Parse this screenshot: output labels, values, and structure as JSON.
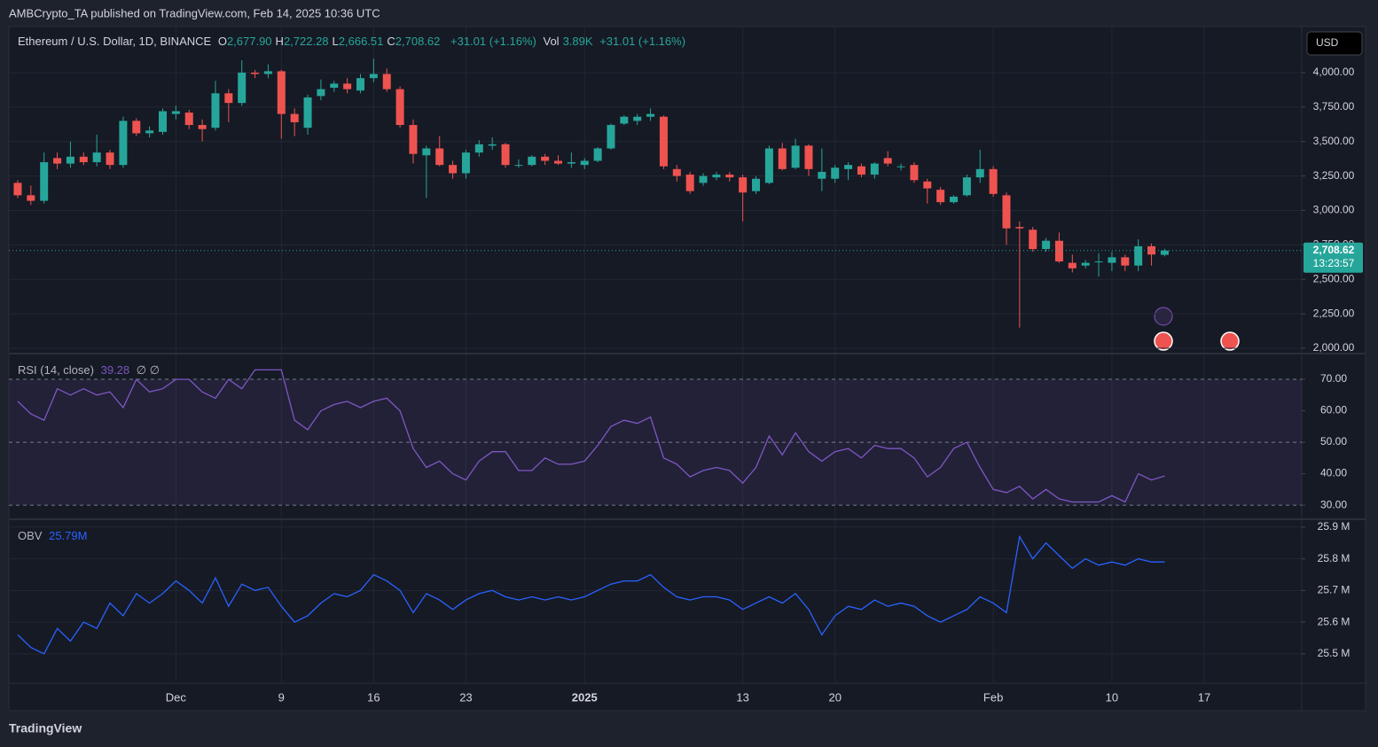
{
  "header": {
    "publisher": "AMBCrypto_TA published on TradingView.com, Feb 14, 2025 10:36 UTC"
  },
  "chart_data": [
    {
      "type": "candlestick",
      "title": "Ethereum / U.S. Dollar, 1D, BINANCE",
      "legend": [
        {
          "label": "O",
          "value": "2,677.90"
        },
        {
          "label": "H",
          "value": "2,722.28"
        },
        {
          "label": "L",
          "value": "2,666.51"
        },
        {
          "label": "C",
          "value": "2,708.62"
        }
      ],
      "change": "+31.01 (+1.16%)",
      "volume_label": "Vol",
      "volume": "3.89K",
      "volume_change": "+31.01 (+1.16%)",
      "currency": "USD",
      "last_price_label": "2,708.62",
      "countdown": "13:23:57",
      "colors": {
        "up": "#26a69a",
        "down": "#ef5350"
      },
      "grid": true,
      "open": [
        3200,
        3110,
        3070,
        3380,
        3340,
        3390,
        3350,
        3420,
        3330,
        3650,
        3560,
        3570,
        3700,
        3710,
        3620,
        3600,
        3850,
        3780,
        4000,
        3990,
        4010,
        3700,
        3600,
        3830,
        3890,
        3920,
        3870,
        3960,
        3990,
        3880,
        3620,
        3400,
        3450,
        3330,
        3270,
        3420,
        3470,
        3480,
        3330,
        3330,
        3390,
        3360,
        3340,
        3330,
        3360,
        3450,
        3630,
        3650,
        3680,
        3680,
        3300,
        3260,
        3200,
        3240,
        3260,
        3240,
        3140,
        3200,
        3450,
        3310,
        3470,
        3230,
        3230,
        3300,
        3320,
        3260,
        3380,
        3320,
        3330,
        3210,
        3150,
        3060,
        3110,
        3240,
        3300,
        3110,
        2880,
        2860,
        2720,
        2780,
        2620,
        2600,
        2630,
        2620,
        2660,
        2600,
        2740,
        2677.9
      ],
      "high": [
        3220,
        3180,
        3420,
        3420,
        3500,
        3420,
        3550,
        3440,
        3680,
        3670,
        3610,
        3740,
        3760,
        3730,
        3660,
        3940,
        3880,
        4090,
        4020,
        4060,
        4020,
        3740,
        3840,
        3950,
        3940,
        3960,
        3990,
        4100,
        4030,
        3900,
        3660,
        3470,
        3540,
        3360,
        3440,
        3510,
        3530,
        3490,
        3370,
        3400,
        3410,
        3400,
        3420,
        3380,
        3460,
        3630,
        3690,
        3700,
        3740,
        3690,
        3330,
        3280,
        3270,
        3280,
        3280,
        3260,
        3250,
        3470,
        3490,
        3520,
        3480,
        3450,
        3330,
        3350,
        3340,
        3350,
        3430,
        3340,
        3350,
        3230,
        3170,
        3110,
        3260,
        3440,
        3320,
        3130,
        2920,
        2880,
        2800,
        2840,
        2680,
        2640,
        2690,
        2700,
        2680,
        2790,
        2760,
        2722.28
      ],
      "low": [
        3090,
        3040,
        3050,
        3300,
        3310,
        3330,
        3320,
        3300,
        3310,
        3540,
        3530,
        3550,
        3660,
        3590,
        3500,
        3580,
        3640,
        3760,
        3960,
        3960,
        3520,
        3540,
        3550,
        3800,
        3860,
        3850,
        3850,
        3930,
        3860,
        3600,
        3340,
        3090,
        3320,
        3230,
        3230,
        3390,
        3440,
        3310,
        3310,
        3320,
        3330,
        3330,
        3310,
        3300,
        3350,
        3440,
        3620,
        3620,
        3650,
        3300,
        3210,
        3120,
        3180,
        3220,
        3210,
        2920,
        3120,
        3190,
        3290,
        3300,
        3250,
        3140,
        3200,
        3220,
        3240,
        3230,
        3320,
        3290,
        3200,
        3050,
        3040,
        3050,
        3100,
        3200,
        3100,
        2750,
        2150,
        2700,
        2700,
        2620,
        2550,
        2580,
        2520,
        2560,
        2560,
        2560,
        2600,
        2666.51
      ],
      "close": [
        3110,
        3070,
        3350,
        3340,
        3390,
        3350,
        3420,
        3330,
        3650,
        3560,
        3580,
        3720,
        3720,
        3620,
        3590,
        3850,
        3780,
        4000,
        3990,
        4010,
        3700,
        3640,
        3820,
        3880,
        3920,
        3880,
        3960,
        3990,
        3880,
        3620,
        3410,
        3450,
        3330,
        3270,
        3420,
        3480,
        3480,
        3330,
        3330,
        3390,
        3360,
        3340,
        3350,
        3360,
        3450,
        3620,
        3680,
        3680,
        3700,
        3320,
        3250,
        3140,
        3250,
        3260,
        3240,
        3130,
        3230,
        3450,
        3300,
        3470,
        3300,
        3280,
        3310,
        3330,
        3260,
        3340,
        3340,
        3320,
        3220,
        3160,
        3060,
        3100,
        3240,
        3300,
        3120,
        2870,
        2870,
        2720,
        2780,
        2630,
        2580,
        2620,
        2630,
        2660,
        2600,
        2740,
        2680,
        2708.62
      ],
      "xlim": [
        -0.67,
        97.4
      ],
      "xticks": [
        {
          "value": 12,
          "label": "Dec"
        },
        {
          "value": 20,
          "label": "9"
        },
        {
          "value": 27,
          "label": "16"
        },
        {
          "value": 34,
          "label": "23"
        },
        {
          "value": 43,
          "label": "2025"
        },
        {
          "value": 55,
          "label": "13"
        },
        {
          "value": 62,
          "label": "20"
        },
        {
          "value": 74,
          "label": "Feb"
        },
        {
          "value": 83,
          "label": "10"
        },
        {
          "value": 90,
          "label": "17"
        }
      ],
      "ylim": [
        1968,
        4334
      ],
      "yticks": [
        {
          "value": 2000,
          "label": "2,000.00"
        },
        {
          "value": 2250,
          "label": "2,250.00"
        },
        {
          "value": 2500,
          "label": "2,500.00"
        },
        {
          "value": 2750,
          "label": "2,750.00"
        },
        {
          "value": 3000,
          "label": "3,000.00"
        },
        {
          "value": 3250,
          "label": "3,250.00"
        },
        {
          "value": 3500,
          "label": "3,500.00"
        },
        {
          "value": 3750,
          "label": "3,750.00"
        },
        {
          "value": 4000,
          "label": "4,000.00"
        }
      ]
    },
    {
      "type": "line",
      "title": "RSI (14, close)",
      "value_label": "39.28",
      "extra": "∅ ∅",
      "color": "#7e57c2",
      "values": [
        63,
        59,
        57,
        67,
        65,
        67,
        65,
        66,
        61,
        70,
        66,
        67,
        70,
        70,
        66,
        64,
        70,
        67,
        73,
        73,
        73,
        57,
        54,
        60,
        62,
        63,
        61,
        63,
        64,
        60,
        48,
        42,
        44,
        40,
        38,
        44,
        47,
        47,
        41,
        41,
        45,
        43,
        43,
        44,
        49,
        55,
        57,
        56,
        58,
        45,
        43,
        39,
        41,
        42,
        41,
        37,
        42,
        52,
        46,
        53,
        47,
        44,
        47,
        48,
        45,
        49,
        48,
        48,
        45,
        39,
        42,
        48,
        50,
        42,
        35,
        34,
        36,
        32,
        35,
        32,
        31,
        31,
        31,
        33,
        31,
        40,
        38,
        39.28
      ],
      "band": [
        30,
        70
      ],
      "levels": [
        70,
        50,
        30
      ],
      "ylim": [
        25.8,
        77.9
      ],
      "yticks": [
        {
          "value": 30,
          "label": "30.00"
        },
        {
          "value": 40,
          "label": "40.00"
        },
        {
          "value": 50,
          "label": "50.00"
        },
        {
          "value": 60,
          "label": "60.00"
        },
        {
          "value": 70,
          "label": "70.00"
        }
      ]
    },
    {
      "type": "line",
      "title": "OBV",
      "value_label": "25.79M",
      "color": "#2962ff",
      "values": [
        25.56,
        25.52,
        25.5,
        25.58,
        25.54,
        25.6,
        25.58,
        25.66,
        25.62,
        25.69,
        25.66,
        25.69,
        25.73,
        25.7,
        25.66,
        25.74,
        25.65,
        25.72,
        25.7,
        25.71,
        25.65,
        25.6,
        25.62,
        25.66,
        25.69,
        25.68,
        25.7,
        25.75,
        25.73,
        25.7,
        25.63,
        25.69,
        25.67,
        25.64,
        25.67,
        25.69,
        25.7,
        25.68,
        25.67,
        25.68,
        25.67,
        25.68,
        25.67,
        25.68,
        25.7,
        25.72,
        25.73,
        25.73,
        25.75,
        25.71,
        25.68,
        25.67,
        25.68,
        25.68,
        25.67,
        25.64,
        25.66,
        25.68,
        25.66,
        25.69,
        25.64,
        25.56,
        25.62,
        25.65,
        25.64,
        25.67,
        25.65,
        25.66,
        25.65,
        25.62,
        25.6,
        25.62,
        25.64,
        25.68,
        25.66,
        25.63,
        25.87,
        25.8,
        25.85,
        25.81,
        25.77,
        25.8,
        25.78,
        25.79,
        25.78,
        25.8,
        25.79,
        25.79
      ],
      "ylim": [
        25.41,
        25.922
      ],
      "yticks": [
        {
          "value": 25.5,
          "label": "25.5 M"
        },
        {
          "value": 25.6,
          "label": "25.6 M"
        },
        {
          "value": 25.7,
          "label": "25.7 M"
        },
        {
          "value": 25.8,
          "label": "25.8 M"
        },
        {
          "value": 25.9,
          "label": "25.9 M"
        }
      ]
    }
  ],
  "footer": {
    "brand": "TradingView"
  }
}
